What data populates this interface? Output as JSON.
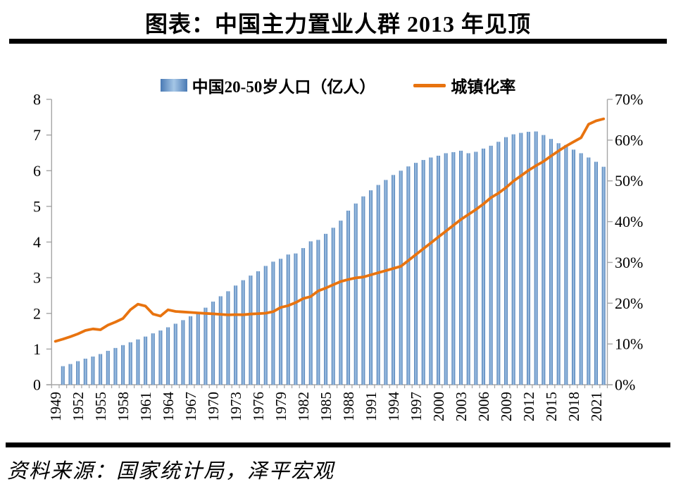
{
  "title": "图表：中国主力置业人群 2013 年见顶",
  "source": "资料来源：国家统计局，泽平宏观",
  "legend": {
    "bar_label": "中国20-50岁人口（亿人）",
    "line_label": "城镇化率"
  },
  "colors": {
    "bar_edge": "#4a7ab4",
    "bar_center": "#a5c6e6",
    "line": "#e8730f",
    "axis": "#a6a6a6",
    "text": "#000000"
  },
  "chart_data": {
    "type": "bar+line combo",
    "title": "图表：中国主力置业人群 2013 年见顶",
    "x": [
      1949,
      1950,
      1951,
      1952,
      1953,
      1954,
      1955,
      1956,
      1957,
      1958,
      1959,
      1960,
      1961,
      1962,
      1963,
      1964,
      1965,
      1966,
      1967,
      1968,
      1969,
      1970,
      1971,
      1972,
      1973,
      1974,
      1975,
      1976,
      1977,
      1978,
      1979,
      1980,
      1981,
      1982,
      1983,
      1984,
      1985,
      1986,
      1987,
      1988,
      1989,
      1990,
      1991,
      1992,
      1993,
      1994,
      1995,
      1996,
      1997,
      1998,
      1999,
      2000,
      2001,
      2002,
      2003,
      2004,
      2005,
      2006,
      2007,
      2008,
      2009,
      2010,
      2011,
      2012,
      2013,
      2014,
      2015,
      2016,
      2017,
      2018,
      2019,
      2020,
      2021,
      2022
    ],
    "series": [
      {
        "name": "中国20-50岁人口（亿人）",
        "type": "bar",
        "axis": "left",
        "values": [
          null,
          0.52,
          0.58,
          0.66,
          0.73,
          0.79,
          0.86,
          0.95,
          1.03,
          1.11,
          1.19,
          1.27,
          1.35,
          1.44,
          1.52,
          1.61,
          1.71,
          1.81,
          1.92,
          2.03,
          2.16,
          2.33,
          2.48,
          2.62,
          2.78,
          2.93,
          3.06,
          3.18,
          3.33,
          3.45,
          3.53,
          3.65,
          3.68,
          3.83,
          4.02,
          4.06,
          4.23,
          4.4,
          4.6,
          4.88,
          5.08,
          5.28,
          5.45,
          5.6,
          5.74,
          5.88,
          6.0,
          6.12,
          6.22,
          6.3,
          6.37,
          6.42,
          6.49,
          6.52,
          6.56,
          6.49,
          6.53,
          6.62,
          6.7,
          6.81,
          6.94,
          7.02,
          7.06,
          7.09,
          7.1,
          7.0,
          6.89,
          6.77,
          6.72,
          6.59,
          6.49,
          6.37,
          6.25,
          6.11
        ]
      },
      {
        "name": "城镇化率",
        "type": "line",
        "axis": "right",
        "values": [
          10.64,
          11.18,
          11.78,
          12.46,
          13.31,
          13.69,
          13.48,
          14.62,
          15.39,
          16.25,
          18.41,
          19.75,
          19.29,
          17.33,
          16.84,
          18.37,
          17.98,
          17.86,
          17.74,
          17.62,
          17.5,
          17.38,
          17.26,
          17.13,
          17.2,
          17.16,
          17.34,
          17.44,
          17.55,
          17.92,
          18.96,
          19.39,
          20.16,
          21.13,
          21.62,
          23.01,
          23.71,
          24.52,
          25.32,
          25.81,
          26.21,
          26.41,
          26.94,
          27.46,
          27.99,
          28.51,
          29.04,
          30.48,
          31.91,
          33.35,
          34.78,
          36.22,
          37.66,
          39.09,
          40.53,
          41.76,
          42.99,
          44.34,
          45.89,
          46.99,
          48.34,
          49.95,
          51.27,
          52.57,
          53.73,
          54.77,
          56.1,
          57.35,
          58.52,
          59.58,
          60.6,
          63.89,
          64.72,
          65.22
        ]
      }
    ],
    "left_axis": {
      "min": 0,
      "max": 8,
      "step": 1,
      "tick_labels": [
        "0",
        "1",
        "2",
        "3",
        "4",
        "5",
        "6",
        "7",
        "8"
      ]
    },
    "right_axis": {
      "min": 0,
      "max": 70,
      "step": 10,
      "tick_labels": [
        "0%",
        "10%",
        "20%",
        "30%",
        "40%",
        "50%",
        "60%",
        "70%"
      ]
    },
    "x_label_interval": 3,
    "x_labels": [
      "1949",
      "1952",
      "1955",
      "1958",
      "1961",
      "1964",
      "1967",
      "1970",
      "1973",
      "1976",
      "1979",
      "1982",
      "1985",
      "1988",
      "1991",
      "1994",
      "1997",
      "2000",
      "2003",
      "2006",
      "2009",
      "2012",
      "2015",
      "2018",
      "2021"
    ],
    "legend_position": "top",
    "gridlines": false
  }
}
